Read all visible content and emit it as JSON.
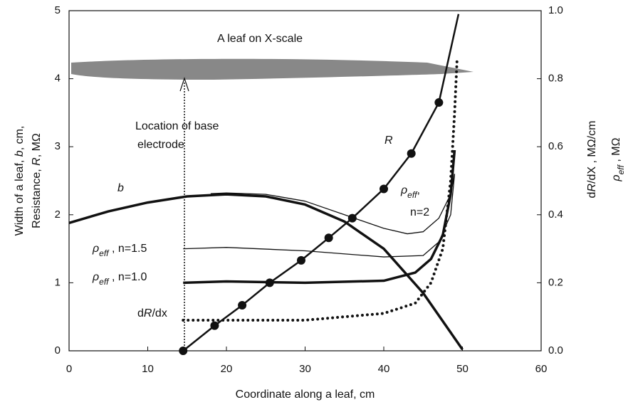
{
  "chart_data": {
    "type": "line",
    "xlabel": [
      {
        "t": "Coordinate along a leaf,  cm"
      }
    ],
    "ylabel": [
      [
        {
          "t": "Width of a leaf,  "
        },
        {
          "t": "b",
          "i": true
        },
        {
          "t": ", cm,"
        }
      ],
      [
        {
          "t": "Resistance, "
        },
        {
          "t": "R",
          "i": true
        },
        {
          "t": ",  MΩ"
        }
      ]
    ],
    "y2label": [
      [
        {
          "t": "d"
        },
        {
          "t": "R",
          "i": true
        },
        {
          "t": "/dX , MΩ/cm"
        }
      ],
      [
        {
          "t": "ρ",
          "i": true
        },
        {
          "t": "eff",
          "i": true,
          "sub": true
        },
        {
          "t": " ,  MΩ"
        }
      ]
    ],
    "xlim": [
      0,
      60
    ],
    "xticks": [
      0,
      10,
      20,
      30,
      40,
      50,
      60
    ],
    "ylim": [
      0,
      5
    ],
    "yticks": [
      0,
      1,
      2,
      3,
      4,
      5
    ],
    "y2lim": [
      0,
      1
    ],
    "y2ticks": [
      {
        "value": 0,
        "label": "0.0"
      },
      {
        "value": 0.2,
        "label": "0.2"
      },
      {
        "value": 0.4,
        "label": "0.4"
      },
      {
        "value": 0.6,
        "label": "0.6"
      },
      {
        "value": 0.8,
        "label": "0.8"
      },
      {
        "value": 1,
        "label": "1.0"
      }
    ],
    "grid": false,
    "series": [
      {
        "color": "#111",
        "width": 3.5,
        "x": [
          0,
          5,
          10,
          15,
          20,
          25,
          30,
          35,
          40,
          45,
          50
        ],
        "values": [
          1.88,
          2.05,
          2.18,
          2.27,
          2.3,
          2.27,
          2.15,
          1.9,
          1.5,
          0.85,
          0.02
        ]
      },
      {
        "color": "#111",
        "width": 2.5,
        "x": [
          14.5,
          18.5,
          22,
          25.5,
          29.5,
          33,
          36,
          40,
          43.5,
          47,
          49.5
        ],
        "values": [
          0,
          0.37,
          0.67,
          1.0,
          1.33,
          1.66,
          1.95,
          2.38,
          2.9,
          3.65,
          4.95
        ],
        "markers": [
          true,
          true,
          true,
          true,
          true,
          true,
          true,
          true,
          true,
          true,
          false
        ]
      },
      {
        "color": "#111",
        "width": 3.5,
        "x": [
          14.5,
          20,
          30,
          40,
          44,
          46,
          47.5,
          48.5,
          49
        ],
        "values": [
          1.0,
          1.02,
          1.0,
          1.03,
          1.15,
          1.35,
          1.7,
          2.3,
          2.95
        ]
      },
      {
        "color": "#111",
        "width": 1.3,
        "x": [
          14.5,
          20,
          30,
          40,
          45,
          47,
          48.5,
          49
        ],
        "values": [
          1.5,
          1.52,
          1.47,
          1.38,
          1.4,
          1.6,
          2.0,
          2.6
        ]
      },
      {
        "color": "#111",
        "width": 1.3,
        "x": [
          18,
          20,
          25,
          30,
          35,
          40,
          43,
          45,
          47,
          48.5,
          49
        ],
        "values": [
          2.31,
          2.32,
          2.3,
          2.2,
          2.0,
          1.8,
          1.72,
          1.75,
          1.95,
          2.3,
          2.6
        ]
      },
      {
        "color": "#111",
        "width": 4,
        "dash": "dotted",
        "axis": "y2",
        "x": [
          14.5,
          20,
          30,
          40,
          44,
          46,
          47.5,
          48.5,
          49,
          49.3
        ],
        "values": [
          0.09,
          0.09,
          0.09,
          0.11,
          0.14,
          0.2,
          0.3,
          0.5,
          0.7,
          0.85
        ]
      }
    ],
    "annotations": [
      [
        {
          "t": "A leaf on X-scale"
        }
      ],
      [
        {
          "t": "Location of base"
        }
      ],
      [
        {
          "t": "electrode"
        }
      ],
      [
        {
          "t": "R",
          "i": true
        }
      ],
      [
        {
          "t": "b",
          "i": true
        }
      ],
      [
        {
          "t": "ρ",
          "i": true
        },
        {
          "t": "eff",
          "i": true,
          "sub": true
        },
        {
          "t": ","
        }
      ],
      [
        {
          "t": "n=2"
        }
      ],
      [
        {
          "t": "ρ",
          "i": true
        },
        {
          "t": "eff",
          "i": true,
          "sub": true
        },
        {
          "t": " , n=1.5"
        }
      ],
      [
        {
          "t": "ρ",
          "i": true
        },
        {
          "t": "eff",
          "i": true,
          "sub": true
        },
        {
          "t": " , n=1.0"
        }
      ],
      [
        {
          "t": "d"
        },
        {
          "t": "R",
          "i": true
        },
        {
          "t": "/dx"
        }
      ]
    ]
  }
}
